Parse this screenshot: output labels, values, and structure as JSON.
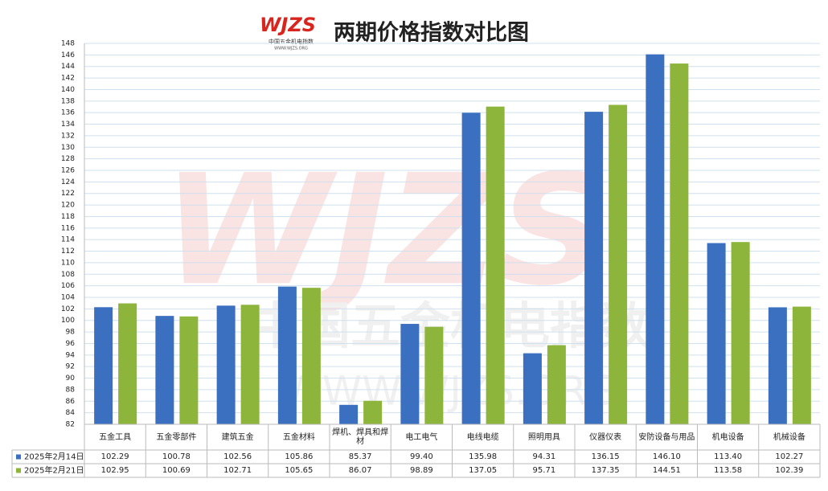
{
  "chart_data": {
    "type": "bar",
    "title": "两期价格指数对比图",
    "logo": {
      "mark": "WJZS",
      "name": "中国五金机电指数",
      "url": "WWW.WJZS.ORG"
    },
    "categories": [
      "五金工具",
      "五金零部件",
      "建筑五金",
      "五金材料",
      "焊机、焊具和焊材",
      "电工电气",
      "电线电缆",
      "照明用具",
      "仪器仪表",
      "安防设备与用品",
      "机电设备",
      "机械设备"
    ],
    "series": [
      {
        "name": "2025年2月14日",
        "color": "#3b6fc0",
        "values": [
          102.29,
          100.78,
          102.56,
          105.86,
          85.37,
          99.4,
          135.98,
          94.31,
          136.15,
          146.1,
          113.4,
          102.27
        ],
        "value_labels": [
          "102.29",
          "100.78",
          "102.56",
          "105.86",
          "85.37",
          "99.40",
          "135.98",
          "94.31",
          "136.15",
          "146.10",
          "113.40",
          "102.27"
        ]
      },
      {
        "name": "2025年2月21日",
        "color": "#8db53c",
        "values": [
          102.95,
          100.69,
          102.71,
          105.65,
          86.07,
          98.89,
          137.05,
          95.71,
          137.35,
          144.51,
          113.58,
          102.39
        ],
        "value_labels": [
          "102.95",
          "100.69",
          "102.71",
          "105.65",
          "86.07",
          "98.89",
          "137.05",
          "95.71",
          "137.35",
          "144.51",
          "113.58",
          "102.39"
        ]
      }
    ],
    "ylim": [
      82,
      148
    ],
    "yticks": [
      82,
      84,
      86,
      88,
      90,
      92,
      94,
      96,
      98,
      100,
      102,
      104,
      106,
      108,
      110,
      112,
      114,
      116,
      118,
      120,
      122,
      124,
      126,
      128,
      130,
      132,
      134,
      136,
      138,
      140,
      142,
      144,
      146,
      148
    ],
    "grid": true
  }
}
